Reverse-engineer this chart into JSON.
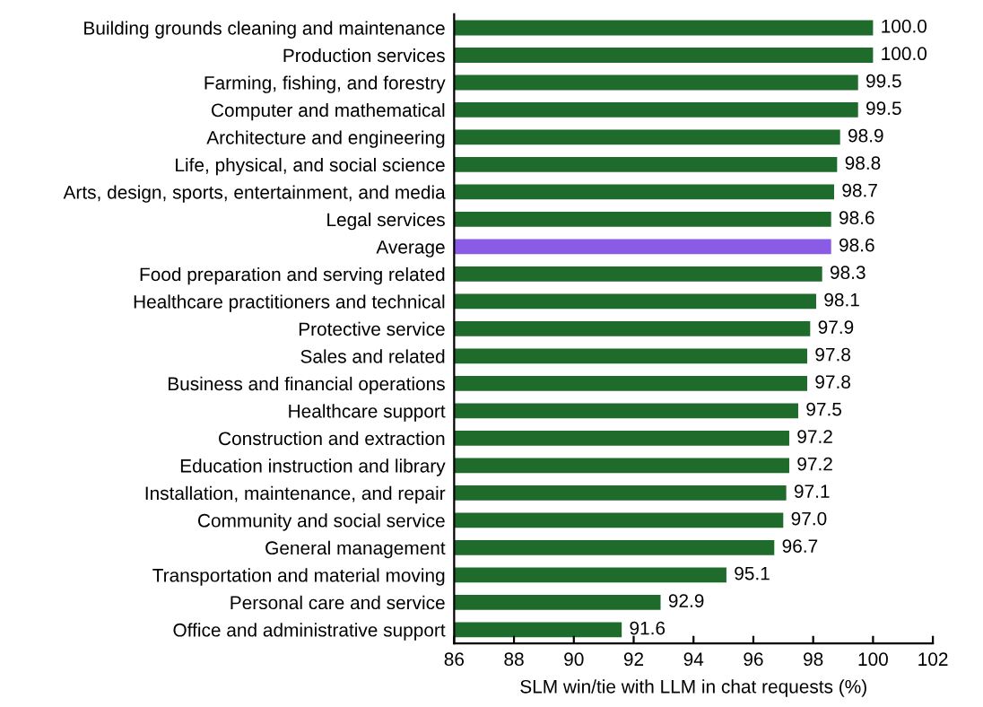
{
  "chart_data": {
    "type": "bar",
    "orientation": "horizontal",
    "xlabel": "SLM win/tie with LLM in chat requests (%)",
    "categories": [
      "Building grounds cleaning and maintenance",
      "Production services",
      "Farming, fishing, and forestry",
      "Computer and mathematical",
      "Architecture and engineering",
      "Life, physical, and social science",
      "Arts, design, sports, entertainment, and media",
      "Legal services",
      "Average",
      "Food preparation and serving related",
      "Healthcare practitioners and technical",
      "Protective service",
      "Sales and related",
      "Business and financial operations",
      "Healthcare support",
      "Construction and extraction",
      "Education instruction and library",
      "Installation, maintenance, and repair",
      "Community and social service",
      "General management",
      "Transportation and material moving",
      "Personal care and service",
      "Office and administrative support"
    ],
    "values": [
      100.0,
      100.0,
      99.5,
      99.5,
      98.9,
      98.8,
      98.7,
      98.6,
      98.6,
      98.3,
      98.1,
      97.9,
      97.8,
      97.8,
      97.5,
      97.2,
      97.2,
      97.1,
      97.0,
      96.7,
      95.1,
      92.9,
      91.6
    ],
    "value_labels": [
      "100.0",
      "100.0",
      "99.5",
      "99.5",
      "98.9",
      "98.8",
      "98.7",
      "98.6",
      "98.6",
      "98.3",
      "98.1",
      "97.9",
      "97.8",
      "97.8",
      "97.5",
      "97.2",
      "97.2",
      "97.1",
      "97.0",
      "96.7",
      "95.1",
      "92.9",
      "91.6"
    ],
    "colors": [
      "#1e6b2c",
      "#1e6b2c",
      "#1e6b2c",
      "#1e6b2c",
      "#1e6b2c",
      "#1e6b2c",
      "#1e6b2c",
      "#1e6b2c",
      "#8a5ce6",
      "#1e6b2c",
      "#1e6b2c",
      "#1e6b2c",
      "#1e6b2c",
      "#1e6b2c",
      "#1e6b2c",
      "#1e6b2c",
      "#1e6b2c",
      "#1e6b2c",
      "#1e6b2c",
      "#1e6b2c",
      "#1e6b2c",
      "#1e6b2c",
      "#1e6b2c"
    ],
    "xlim": [
      86,
      102
    ],
    "xticks": [
      86,
      88,
      90,
      92,
      94,
      96,
      98,
      100,
      102
    ],
    "grid": false,
    "legend": false
  }
}
